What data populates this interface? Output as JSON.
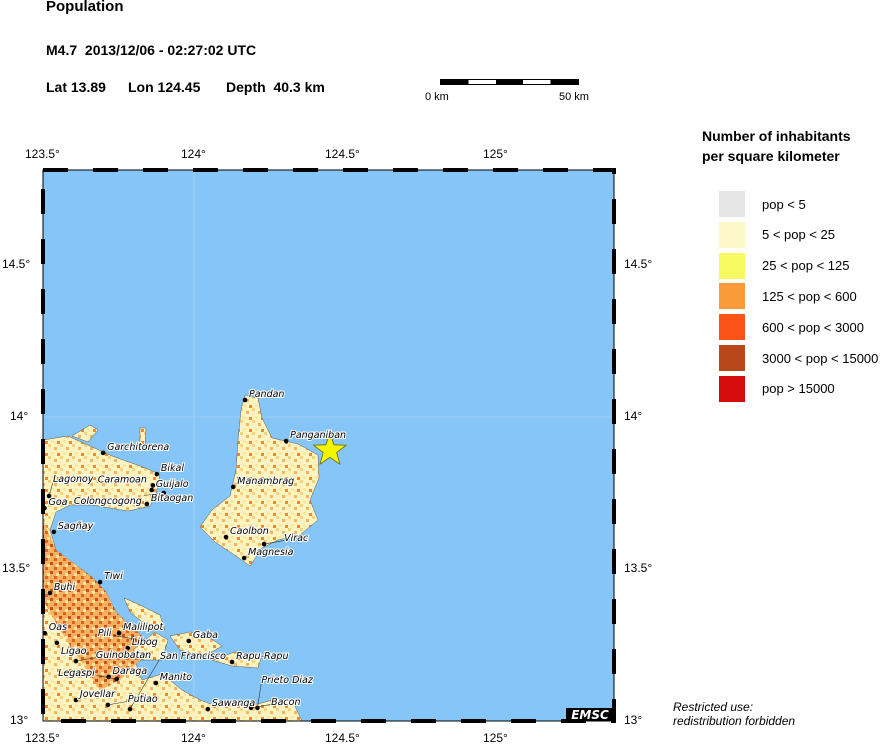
{
  "header": {
    "title": "Population",
    "event": "M4.7  2013/12/06 - 02:27:02 UTC",
    "lat": "Lat 13.89",
    "lon": "Lon 124.45",
    "depth": "Depth  40.3 km"
  },
  "scale_bar": {
    "start_label": "0 km",
    "end_label": "50 km"
  },
  "axes": {
    "lon_ticks": [
      "123.5°",
      "124°",
      "124.5°",
      "125°"
    ],
    "lat_ticks": [
      "14.5°",
      "14°",
      "13.5°",
      "13°"
    ]
  },
  "epicenter": {
    "lon": 124.45,
    "lat": 13.89,
    "marker": "star-icon",
    "color": "#f5f500"
  },
  "colors": {
    "sea": "#86c5f7",
    "land_base": "#fbf4c0"
  },
  "cities": [
    {
      "name": "Pandan",
      "lon": 124.169,
      "lat": 14.056
    },
    {
      "name": "Panganiban",
      "lon": 124.305,
      "lat": 13.921
    },
    {
      "name": "Garchitorena",
      "lon": 123.699,
      "lat": 13.882
    },
    {
      "name": "Bikal",
      "lon": 123.877,
      "lat": 13.812
    },
    {
      "name": "Caramoan",
      "lon": 123.864,
      "lat": 13.775
    },
    {
      "name": "Guijalo",
      "lon": 123.86,
      "lat": 13.76
    },
    {
      "name": "Bitaogan",
      "lon": 123.844,
      "lat": 13.714
    },
    {
      "name": "Colongcogong",
      "lon": 123.9,
      "lat": 13.75
    },
    {
      "name": "Manambrag",
      "lon": 124.13,
      "lat": 13.77
    },
    {
      "name": "Lagonoy",
      "lon": 123.52,
      "lat": 13.74
    },
    {
      "name": "Goa",
      "lon": 123.505,
      "lat": 13.7
    },
    {
      "name": "Sagñay",
      "lon": 123.536,
      "lat": 13.622
    },
    {
      "name": "Caolbon",
      "lon": 124.106,
      "lat": 13.605
    },
    {
      "name": "Virac",
      "lon": 124.232,
      "lat": 13.582
    },
    {
      "name": "Magnesia",
      "lon": 124.166,
      "lat": 13.536
    },
    {
      "name": "Tiwi",
      "lon": 123.689,
      "lat": 13.457
    },
    {
      "name": "Buhi",
      "lon": 123.523,
      "lat": 13.421
    },
    {
      "name": "Malilipot",
      "lon": 123.752,
      "lat": 13.289
    },
    {
      "name": "Pili",
      "lon": 123.8,
      "lat": 13.27
    },
    {
      "name": "Libog",
      "lon": 123.781,
      "lat": 13.24
    },
    {
      "name": "Oas",
      "lon": 123.506,
      "lat": 13.289
    },
    {
      "name": "Ligao",
      "lon": 123.546,
      "lat": 13.257
    },
    {
      "name": "Guinobatan",
      "lon": 123.609,
      "lat": 13.197
    },
    {
      "name": "Daraga",
      "lon": 123.717,
      "lat": 13.145
    },
    {
      "name": "Legaspi",
      "lon": 123.744,
      "lat": 13.138
    },
    {
      "name": "Manito",
      "lon": 123.874,
      "lat": 13.125
    },
    {
      "name": "Gaba",
      "lon": 123.983,
      "lat": 13.263
    },
    {
      "name": "Rapu-Rapu",
      "lon": 124.126,
      "lat": 13.194
    },
    {
      "name": "Jovellar",
      "lon": 123.609,
      "lat": 13.069
    },
    {
      "name": "Putiao",
      "lon": 123.715,
      "lat": 13.053
    },
    {
      "name": "San Francisco",
      "lon": 123.788,
      "lat": 13.039
    },
    {
      "name": "Sawanga",
      "lon": 124.046,
      "lat": 13.039
    },
    {
      "name": "Bacon",
      "lon": 124.189,
      "lat": 13.043
    },
    {
      "name": "Prieto Diaz",
      "lon": 124.21,
      "lat": 13.043
    }
  ],
  "logo": "EMSC",
  "legend": {
    "title_line1": "Number of inhabitants",
    "title_line2": "per square kilometer",
    "items": [
      {
        "label": "pop < 5",
        "color": "#e6e6e6"
      },
      {
        "label": "5 < pop < 25",
        "color": "#fbf7c6"
      },
      {
        "label": "25 < pop < 125",
        "color": "#f8f860"
      },
      {
        "label": "125 < pop < 600",
        "color": "#fa9a38"
      },
      {
        "label": "600 < pop < 3000",
        "color": "#fb5218"
      },
      {
        "label": "3000 < pop < 15000",
        "color": "#b8481a"
      },
      {
        "label": "pop > 15000",
        "color": "#d40c0c"
      }
    ]
  },
  "footnote": {
    "line1": "Restricted use:",
    "line2": "redistribution forbidden"
  }
}
